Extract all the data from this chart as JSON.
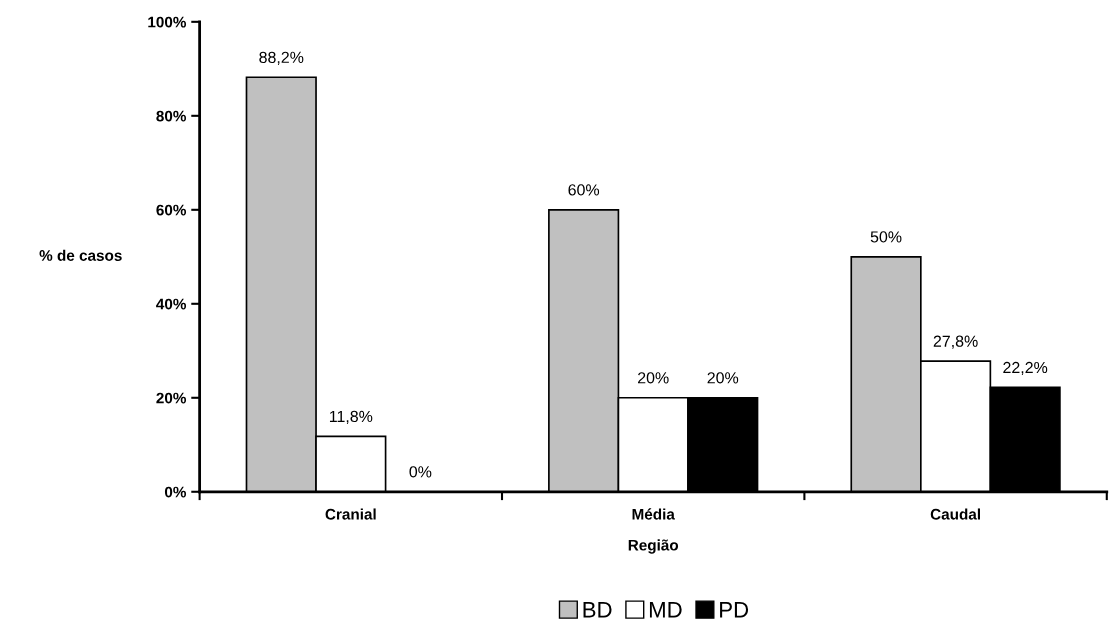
{
  "chart_data": {
    "type": "bar",
    "xlabel": "Região",
    "ylabel": "% de casos",
    "categories": [
      "Cranial",
      "Média",
      "Caudal"
    ],
    "series": [
      {
        "name": "BD",
        "color": "#c0c0c0",
        "values": [
          88.2,
          60,
          50
        ],
        "value_labels": [
          "88,2%",
          "60%",
          "50%"
        ]
      },
      {
        "name": "MD",
        "color": "#ffffff",
        "values": [
          11.8,
          20,
          27.8
        ],
        "value_labels": [
          "11,8%",
          "20%",
          "27,8%"
        ]
      },
      {
        "name": "PD",
        "color": "#000000",
        "values": [
          0,
          20,
          22.2
        ],
        "value_labels": [
          "0%",
          "20%",
          "22,2%"
        ]
      }
    ],
    "ylim": [
      0,
      100
    ],
    "yticks": [
      {
        "value": 0,
        "label": "0%"
      },
      {
        "value": 20,
        "label": "20%"
      },
      {
        "value": 40,
        "label": "40%"
      },
      {
        "value": 60,
        "label": "60%"
      },
      {
        "value": 80,
        "label": "80%"
      },
      {
        "value": 100,
        "label": "100%"
      }
    ],
    "grid": false,
    "legend": "bottom"
  }
}
